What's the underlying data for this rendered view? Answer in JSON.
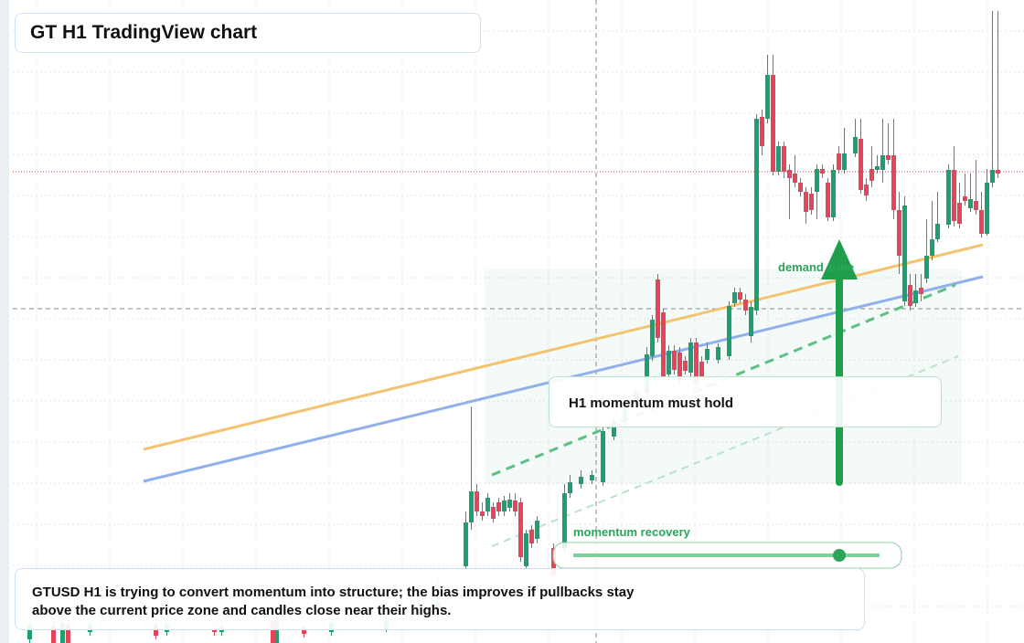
{
  "header": {
    "title": "GT H1 TradingView chart"
  },
  "annotations": {
    "zone": "demand zone",
    "callout": "H1 momentum must hold",
    "indicator": "momentum recovery"
  },
  "summary": "GTUSD H1 is trying to convert momentum into structure; the bias improves if pullbacks stay above the current price zone and candles close near their highs."
}
